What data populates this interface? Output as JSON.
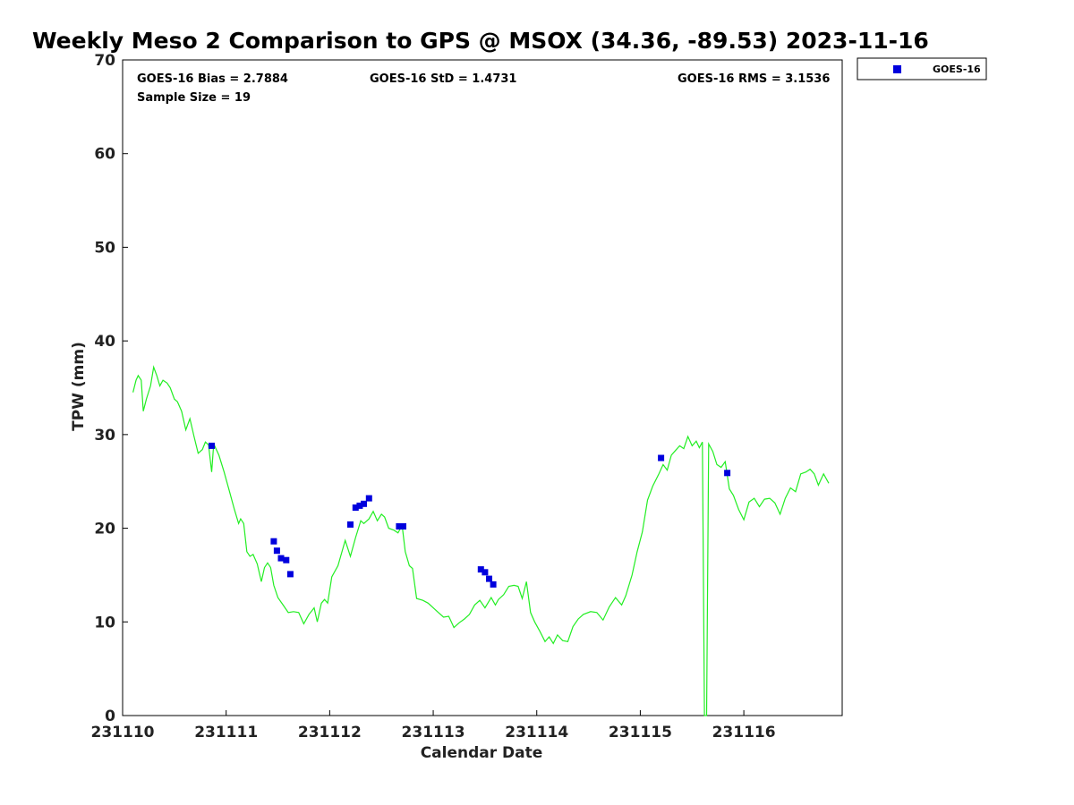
{
  "chart_data": {
    "type": "scatter",
    "title": "Weekly Meso 2 Comparison to GPS @ MSOX (34.36, -89.53) 2023-11-16",
    "xlabel": "Calendar Date",
    "ylabel": "TPW (mm)",
    "x_unit": "days",
    "xlim": [
      0,
      6.95
    ],
    "ylim": [
      0,
      70
    ],
    "x_ticks": [
      {
        "value": 0,
        "label": "231110"
      },
      {
        "value": 1,
        "label": "231111"
      },
      {
        "value": 2,
        "label": "231112"
      },
      {
        "value": 3,
        "label": "231113"
      },
      {
        "value": 4,
        "label": "231114"
      },
      {
        "value": 5,
        "label": "231115"
      },
      {
        "value": 6,
        "label": "231116"
      }
    ],
    "y_ticks": [
      0,
      10,
      20,
      30,
      40,
      50,
      60,
      70
    ],
    "grid": false,
    "legend_position": "top-right",
    "stats": {
      "bias": "GOES-16 Bias = 2.7884",
      "std": "GOES-16 StD = 1.4731",
      "rms": "GOES-16 RMS = 3.1536",
      "sample_size": "Sample Size = 19"
    },
    "series": [
      {
        "name": "GOES-16",
        "kind": "scatter",
        "marker": "square",
        "color": "#0000dd",
        "points": [
          [
            0.86,
            28.8
          ],
          [
            1.46,
            18.6
          ],
          [
            1.49,
            17.6
          ],
          [
            1.53,
            16.8
          ],
          [
            1.58,
            16.6
          ],
          [
            1.62,
            15.1
          ],
          [
            2.2,
            20.4
          ],
          [
            2.25,
            22.2
          ],
          [
            2.29,
            22.4
          ],
          [
            2.33,
            22.6
          ],
          [
            2.38,
            23.2
          ],
          [
            2.67,
            20.2
          ],
          [
            2.71,
            20.2
          ],
          [
            3.46,
            15.6
          ],
          [
            3.5,
            15.3
          ],
          [
            3.54,
            14.6
          ],
          [
            3.58,
            14.0
          ],
          [
            5.2,
            27.5
          ],
          [
            5.84,
            25.9
          ]
        ]
      },
      {
        "kind": "line",
        "color": "#22ee22",
        "points": [
          [
            0.1,
            34.5
          ],
          [
            0.13,
            35.8
          ],
          [
            0.15,
            36.3
          ],
          [
            0.18,
            35.8
          ],
          [
            0.2,
            32.5
          ],
          [
            0.23,
            33.8
          ],
          [
            0.27,
            35.2
          ],
          [
            0.3,
            37.2
          ],
          [
            0.33,
            36.3
          ],
          [
            0.36,
            35.2
          ],
          [
            0.39,
            35.8
          ],
          [
            0.43,
            35.5
          ],
          [
            0.46,
            35.0
          ],
          [
            0.5,
            33.8
          ],
          [
            0.53,
            33.5
          ],
          [
            0.57,
            32.5
          ],
          [
            0.61,
            30.5
          ],
          [
            0.65,
            31.7
          ],
          [
            0.69,
            29.8
          ],
          [
            0.73,
            28.0
          ],
          [
            0.77,
            28.4
          ],
          [
            0.8,
            29.2
          ],
          [
            0.83,
            28.9
          ],
          [
            0.86,
            26.0
          ],
          [
            0.88,
            29.0
          ],
          [
            0.93,
            27.8
          ],
          [
            0.98,
            26.0
          ],
          [
            1.03,
            24.0
          ],
          [
            1.08,
            22.0
          ],
          [
            1.12,
            20.5
          ],
          [
            1.14,
            21.0
          ],
          [
            1.17,
            20.5
          ],
          [
            1.2,
            17.5
          ],
          [
            1.23,
            17.0
          ],
          [
            1.26,
            17.2
          ],
          [
            1.3,
            16.2
          ],
          [
            1.34,
            14.3
          ],
          [
            1.37,
            15.8
          ],
          [
            1.4,
            16.3
          ],
          [
            1.43,
            15.8
          ],
          [
            1.46,
            13.9
          ],
          [
            1.5,
            12.6
          ],
          [
            1.55,
            11.8
          ],
          [
            1.6,
            11.0
          ],
          [
            1.65,
            11.1
          ],
          [
            1.7,
            11.0
          ],
          [
            1.75,
            9.8
          ],
          [
            1.8,
            10.8
          ],
          [
            1.85,
            11.5
          ],
          [
            1.88,
            10.0
          ],
          [
            1.92,
            12.0
          ],
          [
            1.95,
            12.4
          ],
          [
            1.98,
            12.0
          ],
          [
            2.02,
            14.8
          ],
          [
            2.08,
            16.0
          ],
          [
            2.15,
            18.7
          ],
          [
            2.2,
            17.0
          ],
          [
            2.25,
            19.0
          ],
          [
            2.3,
            20.8
          ],
          [
            2.33,
            20.5
          ],
          [
            2.38,
            21.0
          ],
          [
            2.42,
            21.8
          ],
          [
            2.46,
            20.8
          ],
          [
            2.5,
            21.5
          ],
          [
            2.53,
            21.2
          ],
          [
            2.57,
            20.0
          ],
          [
            2.62,
            19.8
          ],
          [
            2.66,
            19.5
          ],
          [
            2.7,
            20.3
          ],
          [
            2.73,
            17.5
          ],
          [
            2.77,
            16.0
          ],
          [
            2.8,
            15.7
          ],
          [
            2.84,
            12.5
          ],
          [
            2.9,
            12.3
          ],
          [
            2.95,
            12.0
          ],
          [
            3.0,
            11.5
          ],
          [
            3.05,
            11.0
          ],
          [
            3.1,
            10.5
          ],
          [
            3.15,
            10.6
          ],
          [
            3.2,
            9.4
          ],
          [
            3.25,
            9.9
          ],
          [
            3.3,
            10.3
          ],
          [
            3.35,
            10.8
          ],
          [
            3.4,
            11.8
          ],
          [
            3.45,
            12.3
          ],
          [
            3.5,
            11.5
          ],
          [
            3.56,
            12.6
          ],
          [
            3.6,
            11.8
          ],
          [
            3.63,
            12.4
          ],
          [
            3.68,
            12.9
          ],
          [
            3.73,
            13.8
          ],
          [
            3.78,
            13.9
          ],
          [
            3.82,
            13.8
          ],
          [
            3.86,
            12.5
          ],
          [
            3.9,
            14.3
          ],
          [
            3.94,
            11.0
          ],
          [
            3.98,
            10.0
          ],
          [
            4.03,
            9.0
          ],
          [
            4.08,
            7.9
          ],
          [
            4.12,
            8.4
          ],
          [
            4.16,
            7.7
          ],
          [
            4.2,
            8.6
          ],
          [
            4.25,
            8.0
          ],
          [
            4.3,
            7.9
          ],
          [
            4.35,
            9.5
          ],
          [
            4.4,
            10.3
          ],
          [
            4.45,
            10.8
          ],
          [
            4.52,
            11.1
          ],
          [
            4.58,
            11.0
          ],
          [
            4.64,
            10.2
          ],
          [
            4.7,
            11.6
          ],
          [
            4.76,
            12.6
          ],
          [
            4.82,
            11.8
          ],
          [
            4.86,
            12.8
          ],
          [
            4.92,
            15.0
          ],
          [
            4.97,
            17.5
          ],
          [
            5.02,
            19.6
          ],
          [
            5.07,
            23.0
          ],
          [
            5.12,
            24.5
          ],
          [
            5.18,
            25.8
          ],
          [
            5.22,
            26.8
          ],
          [
            5.26,
            26.2
          ],
          [
            5.3,
            27.8
          ],
          [
            5.34,
            28.3
          ],
          [
            5.38,
            28.8
          ],
          [
            5.42,
            28.5
          ],
          [
            5.46,
            29.8
          ],
          [
            5.5,
            28.8
          ],
          [
            5.54,
            29.3
          ],
          [
            5.57,
            28.6
          ],
          [
            5.6,
            29.2
          ],
          [
            5.62,
            0.0
          ],
          [
            5.64,
            0.0
          ],
          [
            5.66,
            29.0
          ],
          [
            5.7,
            28.2
          ],
          [
            5.74,
            26.8
          ],
          [
            5.78,
            26.5
          ],
          [
            5.82,
            27.1
          ],
          [
            5.86,
            24.2
          ],
          [
            5.9,
            23.5
          ],
          [
            5.95,
            22.0
          ],
          [
            6.0,
            20.9
          ],
          [
            6.05,
            22.8
          ],
          [
            6.1,
            23.2
          ],
          [
            6.15,
            22.3
          ],
          [
            6.2,
            23.1
          ],
          [
            6.25,
            23.2
          ],
          [
            6.3,
            22.7
          ],
          [
            6.35,
            21.5
          ],
          [
            6.4,
            23.2
          ],
          [
            6.45,
            24.3
          ],
          [
            6.5,
            23.9
          ],
          [
            6.55,
            25.8
          ],
          [
            6.6,
            26.0
          ],
          [
            6.64,
            26.3
          ],
          [
            6.68,
            25.8
          ],
          [
            6.72,
            24.6
          ],
          [
            6.77,
            25.8
          ],
          [
            6.82,
            24.8
          ]
        ]
      }
    ]
  }
}
